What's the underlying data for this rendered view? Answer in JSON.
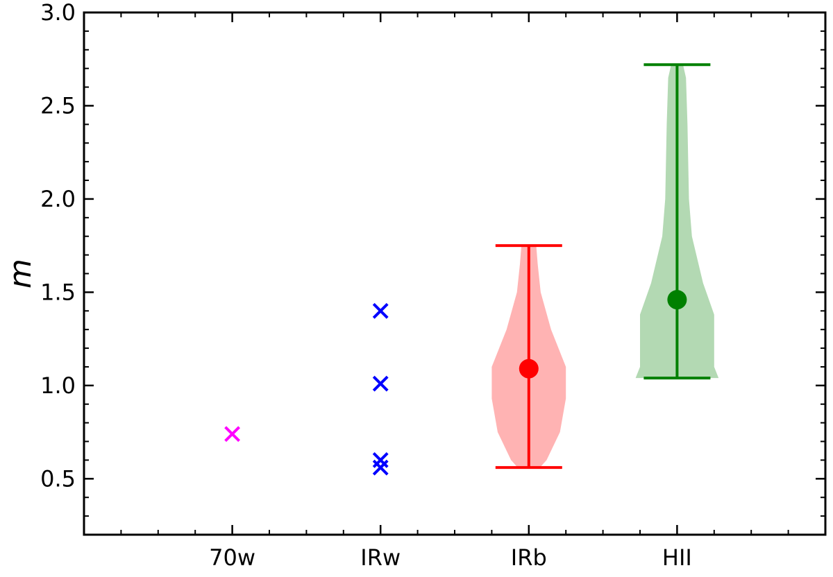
{
  "chart_data": {
    "type": "violin",
    "title": "",
    "xlabel": "",
    "ylabel": "m",
    "ylim": [
      0.2,
      3.0
    ],
    "yticks": [
      0.5,
      1.0,
      1.5,
      2.0,
      2.5,
      3.0
    ],
    "ytick_labels": [
      "0.5",
      "1.0",
      "1.5",
      "2.0",
      "2.5",
      "3.0"
    ],
    "categories": [
      "70w",
      "IRw",
      "IRb",
      "HII"
    ],
    "grid": false,
    "legend": "none",
    "groups": [
      {
        "category": "70w",
        "color": "#ff00ff",
        "points": [
          0.74
        ]
      },
      {
        "category": "IRw",
        "color": "#0000ff",
        "points": [
          1.4,
          1.01,
          0.6,
          0.56
        ]
      },
      {
        "category": "IRb",
        "color": "#ff0000",
        "fill_color": "#ffb3b3",
        "min": 0.56,
        "max": 1.75,
        "median": 1.09,
        "profile": [
          [
            0.56,
            0.15
          ],
          [
            0.6,
            0.24
          ],
          [
            0.75,
            0.42
          ],
          [
            0.93,
            0.5
          ],
          [
            1.1,
            0.5
          ],
          [
            1.3,
            0.3
          ],
          [
            1.5,
            0.16
          ],
          [
            1.65,
            0.12
          ],
          [
            1.75,
            0.1
          ]
        ]
      },
      {
        "category": "HII",
        "color": "#008000",
        "fill_color": "#b3d9b3",
        "min": 1.04,
        "max": 2.72,
        "median": 1.46,
        "profile": [
          [
            1.04,
            0.56
          ],
          [
            1.1,
            0.5
          ],
          [
            1.38,
            0.5
          ],
          [
            1.55,
            0.35
          ],
          [
            1.8,
            0.2
          ],
          [
            2.0,
            0.16
          ],
          [
            2.4,
            0.14
          ],
          [
            2.65,
            0.12
          ],
          [
            2.72,
            0.08
          ]
        ]
      }
    ]
  }
}
